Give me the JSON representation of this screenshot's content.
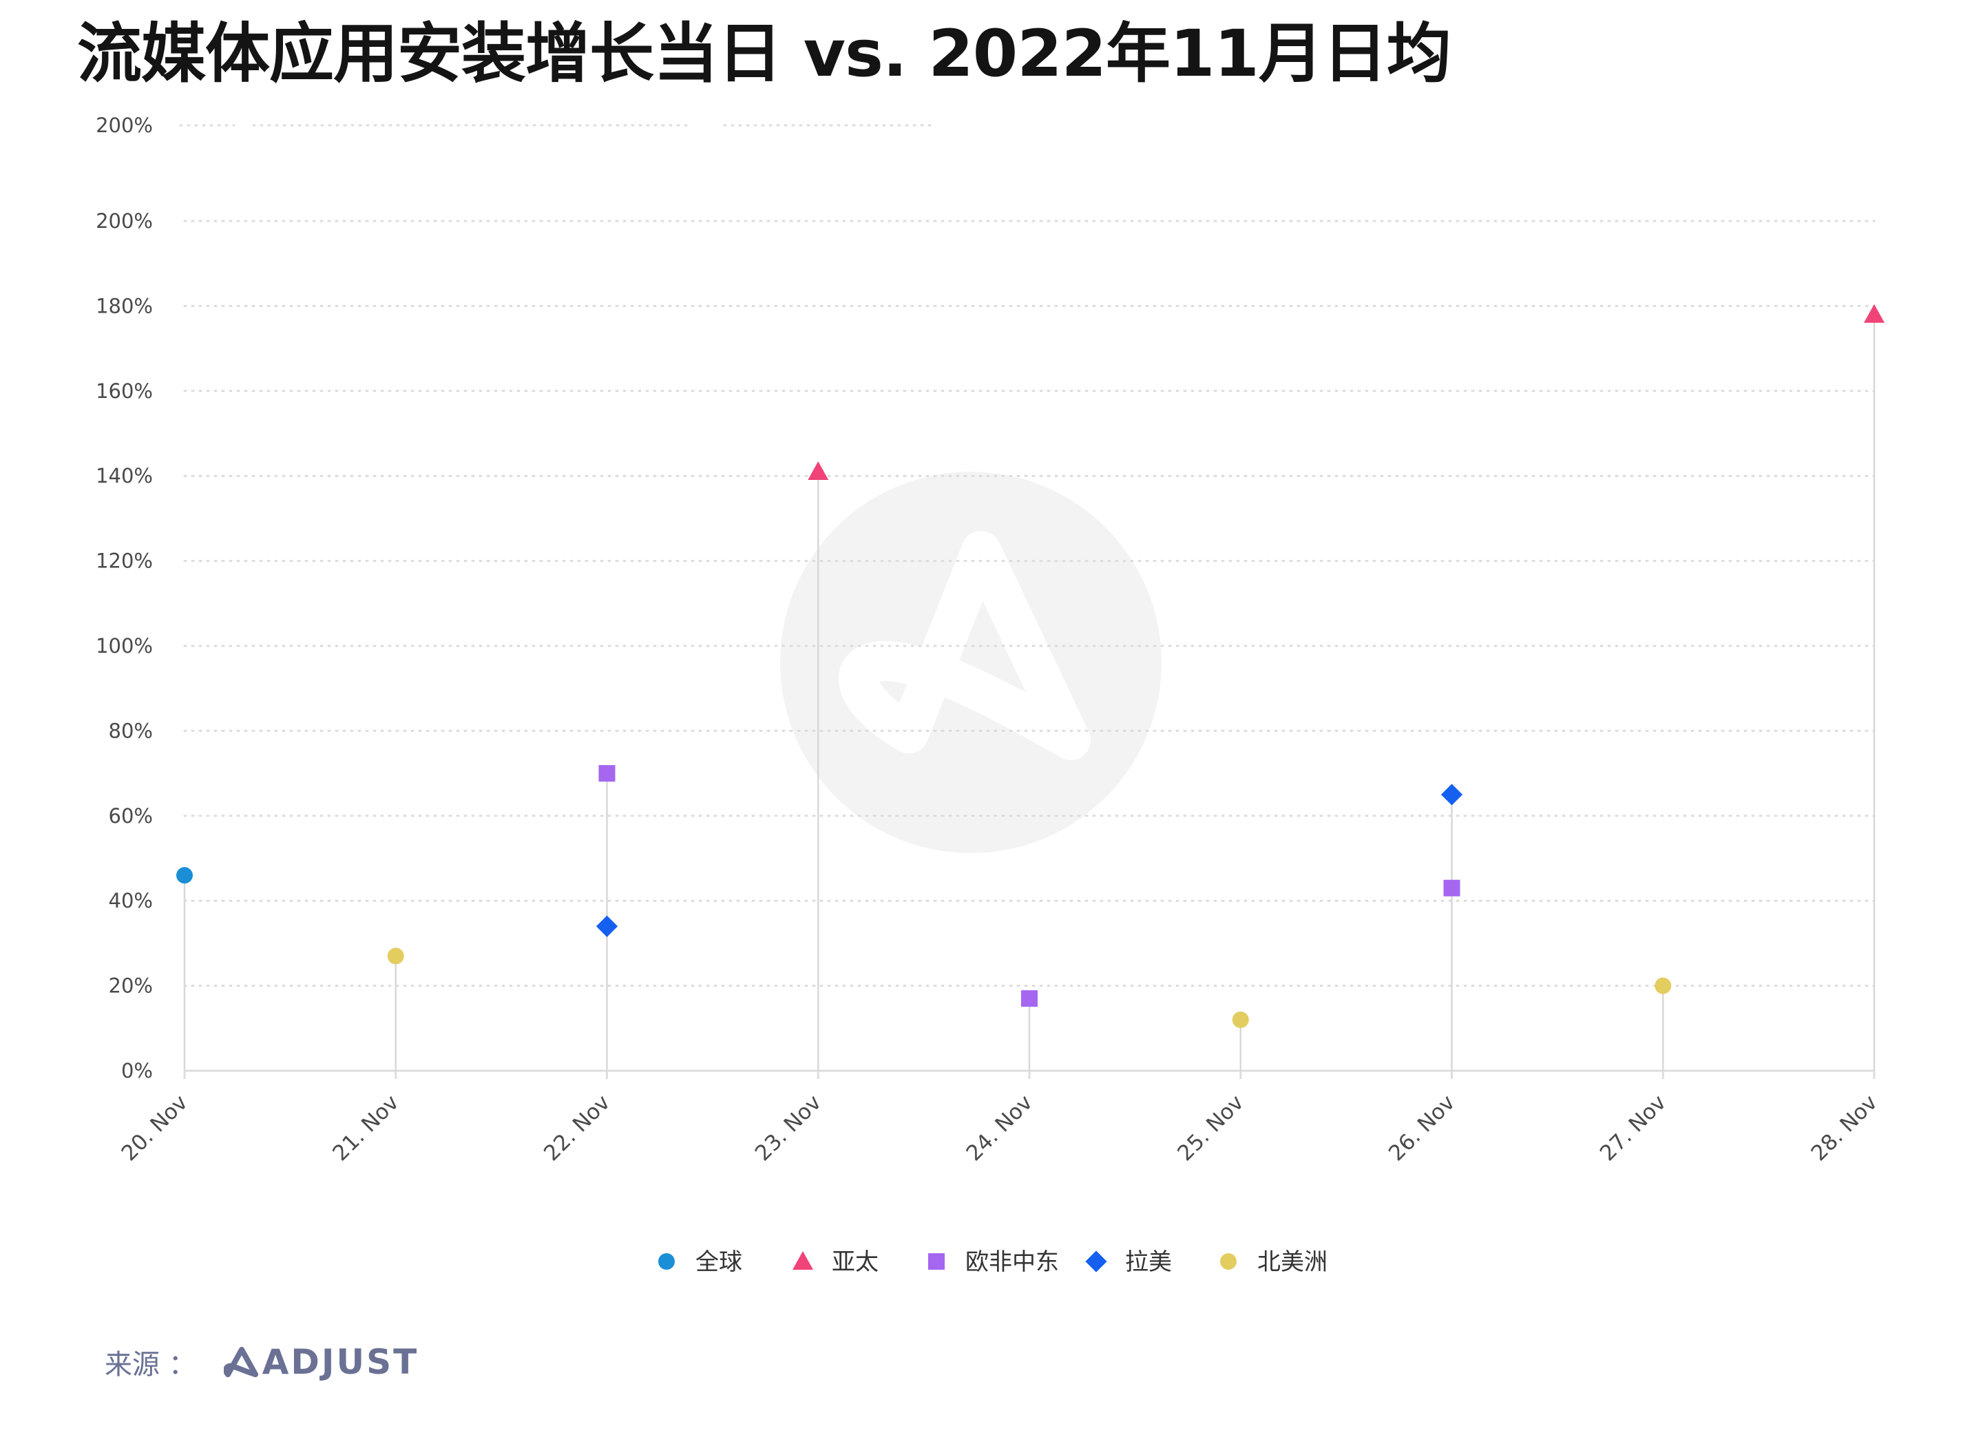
{
  "title": "流媒体应用安装增长当日 vs. 2022年11月日均",
  "chart_data": {
    "type": "scatter",
    "title": "流媒体应用安装增长当日 vs. 2022年11月日均",
    "categories": [
      "20. Nov",
      "21. Nov",
      "22. Nov",
      "23. Nov",
      "24. Nov",
      "25. Nov",
      "26. Nov",
      "27. Nov",
      "28. Nov"
    ],
    "y_ticks": [
      "0%",
      "20%",
      "40%",
      "60%",
      "80%",
      "100%",
      "120%",
      "140%",
      "160%",
      "180%",
      "200%"
    ],
    "ylim": [
      0,
      200
    ],
    "y_unit": "%",
    "grid": true,
    "legend_position": "bottom",
    "series": [
      {
        "name": "全球",
        "marker": "circle",
        "color": "#1a8fd6",
        "points": [
          {
            "x": "20. Nov",
            "y": 46
          }
        ]
      },
      {
        "name": "亚太",
        "marker": "triangle",
        "color": "#f04378",
        "points": [
          {
            "x": "23. Nov",
            "y": 141
          },
          {
            "x": "28. Nov",
            "y": 178
          }
        ]
      },
      {
        "name": "欧非中东",
        "marker": "square",
        "color": "#a566f0",
        "points": [
          {
            "x": "22. Nov",
            "y": 70
          },
          {
            "x": "24. Nov",
            "y": 17
          },
          {
            "x": "26. Nov",
            "y": 43
          }
        ]
      },
      {
        "name": "拉美",
        "marker": "diamond",
        "color": "#1660f0",
        "points": [
          {
            "x": "22. Nov",
            "y": 34
          },
          {
            "x": "26. Nov",
            "y": 65
          }
        ]
      },
      {
        "name": "北美洲",
        "marker": "circle",
        "color": "#e3cd5f",
        "points": [
          {
            "x": "21. Nov",
            "y": 27
          },
          {
            "x": "25. Nov",
            "y": 12
          },
          {
            "x": "27. Nov",
            "y": 20
          }
        ]
      }
    ]
  },
  "footer": {
    "source_label": "来源 ：",
    "brand": "ADJUST"
  },
  "colors": {
    "watermark": "#f3f3f3",
    "stem": "#d8d8d8",
    "grid": "#dcdcdc",
    "axis": "#dddddd"
  }
}
